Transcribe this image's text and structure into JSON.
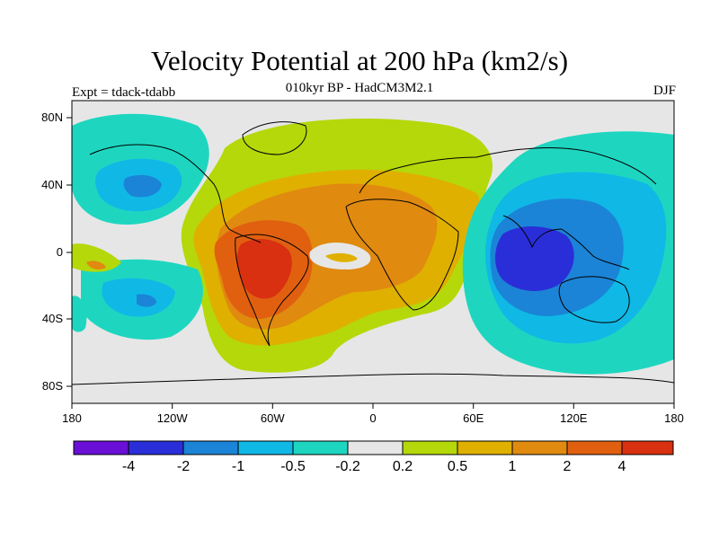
{
  "title": "Velocity Potential at 200 hPa (km2/s)",
  "subtitle": "010kyr BP - HadCM3M2.1",
  "expt_label": "Expt = tdack-tdabb",
  "season": "DJF",
  "map": {
    "lat_ticks": [
      "80N",
      "40N",
      "0",
      "40S",
      "80S"
    ],
    "lon_ticks": [
      "180",
      "120W",
      "60W",
      "0",
      "60E",
      "120E",
      "180"
    ],
    "colors": {
      "neutral": "#e6e6e6",
      "lev_m4": "#6a0fd6",
      "lev_m2": "#2a2ed8",
      "lev_m1": "#1b84d6",
      "lev_m05": "#10b8e6",
      "lev_m02": "#1ed6c0",
      "lev_02": "#b4d80a",
      "lev_05": "#e0b000",
      "lev_1": "#e08a10",
      "lev_2": "#e06010",
      "lev_4": "#d83010",
      "land": "#000000"
    }
  },
  "colorbar": {
    "colors": [
      "#6a0fd6",
      "#2a2ed8",
      "#1b84d6",
      "#10b8e6",
      "#1ed6c0",
      "#e6e6e6",
      "#b4d80a",
      "#e0b000",
      "#e08a10",
      "#e06010",
      "#d83010",
      "#e80000"
    ],
    "labels": [
      "-4",
      "-2",
      "-1",
      "-0.5",
      "-0.2",
      "0.2",
      "0.5",
      "1",
      "2",
      "4"
    ]
  }
}
